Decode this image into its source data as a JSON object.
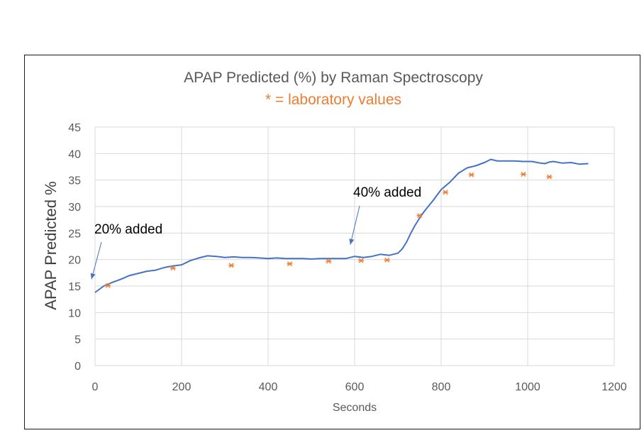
{
  "chart_data": {
    "type": "line",
    "title": "APAP Predicted (%) by Raman Spectroscopy",
    "subtitle": "* = laboratory values",
    "xlabel": "Seconds",
    "ylabel": "APAP Predicted %",
    "xlim": [
      0,
      1200
    ],
    "ylim": [
      0,
      45
    ],
    "x_ticks": [
      0,
      200,
      400,
      600,
      800,
      1000,
      1200
    ],
    "y_ticks": [
      0,
      5,
      10,
      15,
      20,
      25,
      30,
      35,
      40,
      45
    ],
    "grid": true,
    "legend": "none",
    "colors": {
      "line": "#4472c4",
      "markers": "#ed7d31",
      "subtitle": "#ed7d31",
      "grid": "#d9d9d9"
    },
    "series": [
      {
        "type": "line",
        "x": [
          0,
          20,
          40,
          60,
          80,
          100,
          120,
          140,
          160,
          180,
          200,
          220,
          240,
          260,
          280,
          300,
          320,
          340,
          360,
          380,
          400,
          420,
          440,
          460,
          480,
          500,
          520,
          540,
          560,
          580,
          600,
          620,
          640,
          660,
          680,
          700,
          710,
          720,
          730,
          740,
          750,
          760,
          780,
          800,
          820,
          840,
          860,
          880,
          900,
          915,
          930,
          950,
          970,
          990,
          1010,
          1030,
          1040,
          1050,
          1060,
          1080,
          1100,
          1120,
          1140
        ],
        "y": [
          13.8,
          15.0,
          15.7,
          16.3,
          17.0,
          17.4,
          17.8,
          18.0,
          18.5,
          18.8,
          19.0,
          19.8,
          20.3,
          20.7,
          20.6,
          20.4,
          20.5,
          20.4,
          20.4,
          20.3,
          20.2,
          20.3,
          20.2,
          20.2,
          20.2,
          20.1,
          20.2,
          20.2,
          20.2,
          20.2,
          20.6,
          20.4,
          20.6,
          21.0,
          20.8,
          21.2,
          22.0,
          23.3,
          25.0,
          26.5,
          27.8,
          29.0,
          31.0,
          33.2,
          34.6,
          36.3,
          37.3,
          37.7,
          38.3,
          38.9,
          38.6,
          38.6,
          38.6,
          38.5,
          38.5,
          38.2,
          38.1,
          38.4,
          38.5,
          38.2,
          38.3,
          38.0,
          38.1
        ]
      },
      {
        "type": "scatter",
        "marker": "*",
        "x": [
          30,
          180,
          315,
          450,
          540,
          615,
          675,
          750,
          810,
          870,
          990,
          1050
        ],
        "y": [
          15.1,
          18.4,
          18.9,
          19.2,
          19.7,
          19.8,
          19.9,
          28.3,
          32.7,
          36.0,
          36.1,
          35.6
        ]
      }
    ],
    "annotations": [
      {
        "text": "20% added",
        "arrow_to": [
          0,
          16.3
        ]
      },
      {
        "text": "40% added",
        "arrow_to": [
          590,
          22.8
        ]
      }
    ]
  }
}
